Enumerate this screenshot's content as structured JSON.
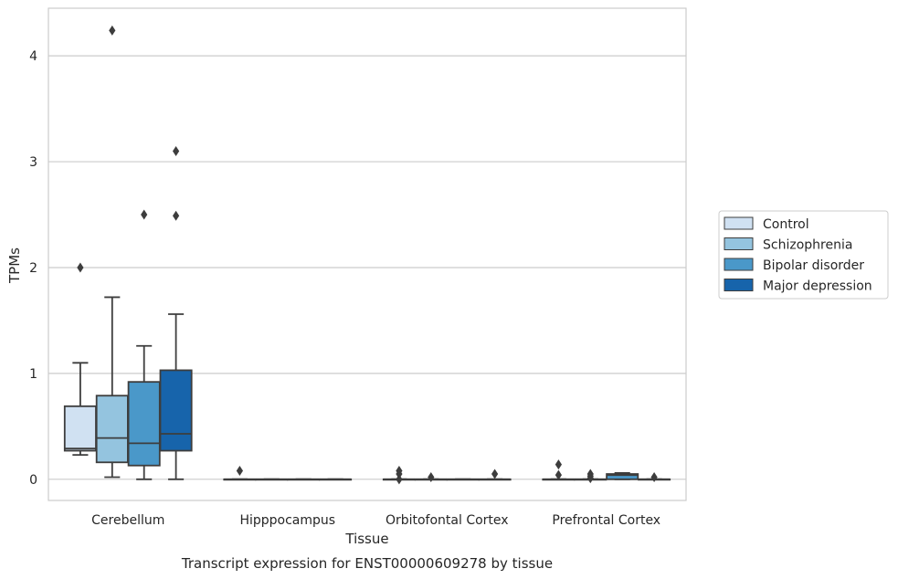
{
  "caption": "Transcript expression for ENST00000609278 by tissue",
  "chart_data": {
    "type": "boxplot",
    "title": "",
    "xlabel": "Tissue",
    "ylabel": "TPMs",
    "ylim": [
      -0.2,
      4.45
    ],
    "yticks": [
      0,
      1,
      2,
      3,
      4
    ],
    "grid": "horizontal",
    "legend_position": "right",
    "categories": [
      "Cerebellum",
      "Hipppocampus",
      "Orbitofontal Cortex",
      "Prefrontal Cortex"
    ],
    "series": [
      {
        "name": "Control",
        "color": "#d0e1f2",
        "boxes": [
          {
            "whisker_low": 0.23,
            "q1": 0.27,
            "median": 0.29,
            "q3": 0.69,
            "whisker_high": 1.1,
            "outliers": [
              2.0
            ]
          },
          {
            "whisker_low": 0,
            "q1": 0,
            "median": 0,
            "q3": 0,
            "whisker_high": 0,
            "outliers": [
              0.08
            ]
          },
          {
            "whisker_low": 0,
            "q1": 0,
            "median": 0,
            "q3": 0,
            "whisker_high": 0,
            "outliers": [
              0.0,
              0.05,
              0.08
            ]
          },
          {
            "whisker_low": 0,
            "q1": 0,
            "median": 0,
            "q3": 0,
            "whisker_high": 0,
            "outliers": [
              0.04,
              0.14
            ]
          }
        ]
      },
      {
        "name": "Schizophrenia",
        "color": "#94c4df",
        "boxes": [
          {
            "whisker_low": 0.02,
            "q1": 0.16,
            "median": 0.39,
            "q3": 0.79,
            "whisker_high": 1.72,
            "outliers": [
              4.24
            ]
          },
          {
            "whisker_low": 0,
            "q1": 0,
            "median": 0,
            "q3": 0,
            "whisker_high": 0,
            "outliers": []
          },
          {
            "whisker_low": 0,
            "q1": 0,
            "median": 0,
            "q3": 0,
            "whisker_high": 0,
            "outliers": [
              0.02
            ]
          },
          {
            "whisker_low": 0,
            "q1": 0,
            "median": 0,
            "q3": 0,
            "whisker_high": 0,
            "outliers": [
              0.01,
              0.03,
              0.05
            ]
          }
        ]
      },
      {
        "name": "Bipolar disorder",
        "color": "#4a98c9",
        "boxes": [
          {
            "whisker_low": 0.0,
            "q1": 0.13,
            "median": 0.34,
            "q3": 0.92,
            "whisker_high": 1.26,
            "outliers": [
              2.5
            ]
          },
          {
            "whisker_low": 0,
            "q1": 0,
            "median": 0,
            "q3": 0,
            "whisker_high": 0,
            "outliers": []
          },
          {
            "whisker_low": 0,
            "q1": 0,
            "median": 0,
            "q3": 0,
            "whisker_high": 0,
            "outliers": []
          },
          {
            "whisker_low": 0,
            "q1": 0,
            "median": 0.04,
            "q3": 0.05,
            "whisker_high": 0.06,
            "outliers": []
          }
        ]
      },
      {
        "name": "Major depression",
        "color": "#1764ab",
        "boxes": [
          {
            "whisker_low": 0.0,
            "q1": 0.27,
            "median": 0.43,
            "q3": 1.03,
            "whisker_high": 1.56,
            "outliers": [
              2.49,
              3.1
            ]
          },
          {
            "whisker_low": 0,
            "q1": 0,
            "median": 0,
            "q3": 0,
            "whisker_high": 0,
            "outliers": []
          },
          {
            "whisker_low": 0,
            "q1": 0,
            "median": 0,
            "q3": 0,
            "whisker_high": 0,
            "outliers": [
              0.05
            ]
          },
          {
            "whisker_low": 0,
            "q1": 0,
            "median": 0,
            "q3": 0,
            "whisker_high": 0,
            "outliers": [
              0.02
            ]
          }
        ]
      }
    ]
  }
}
